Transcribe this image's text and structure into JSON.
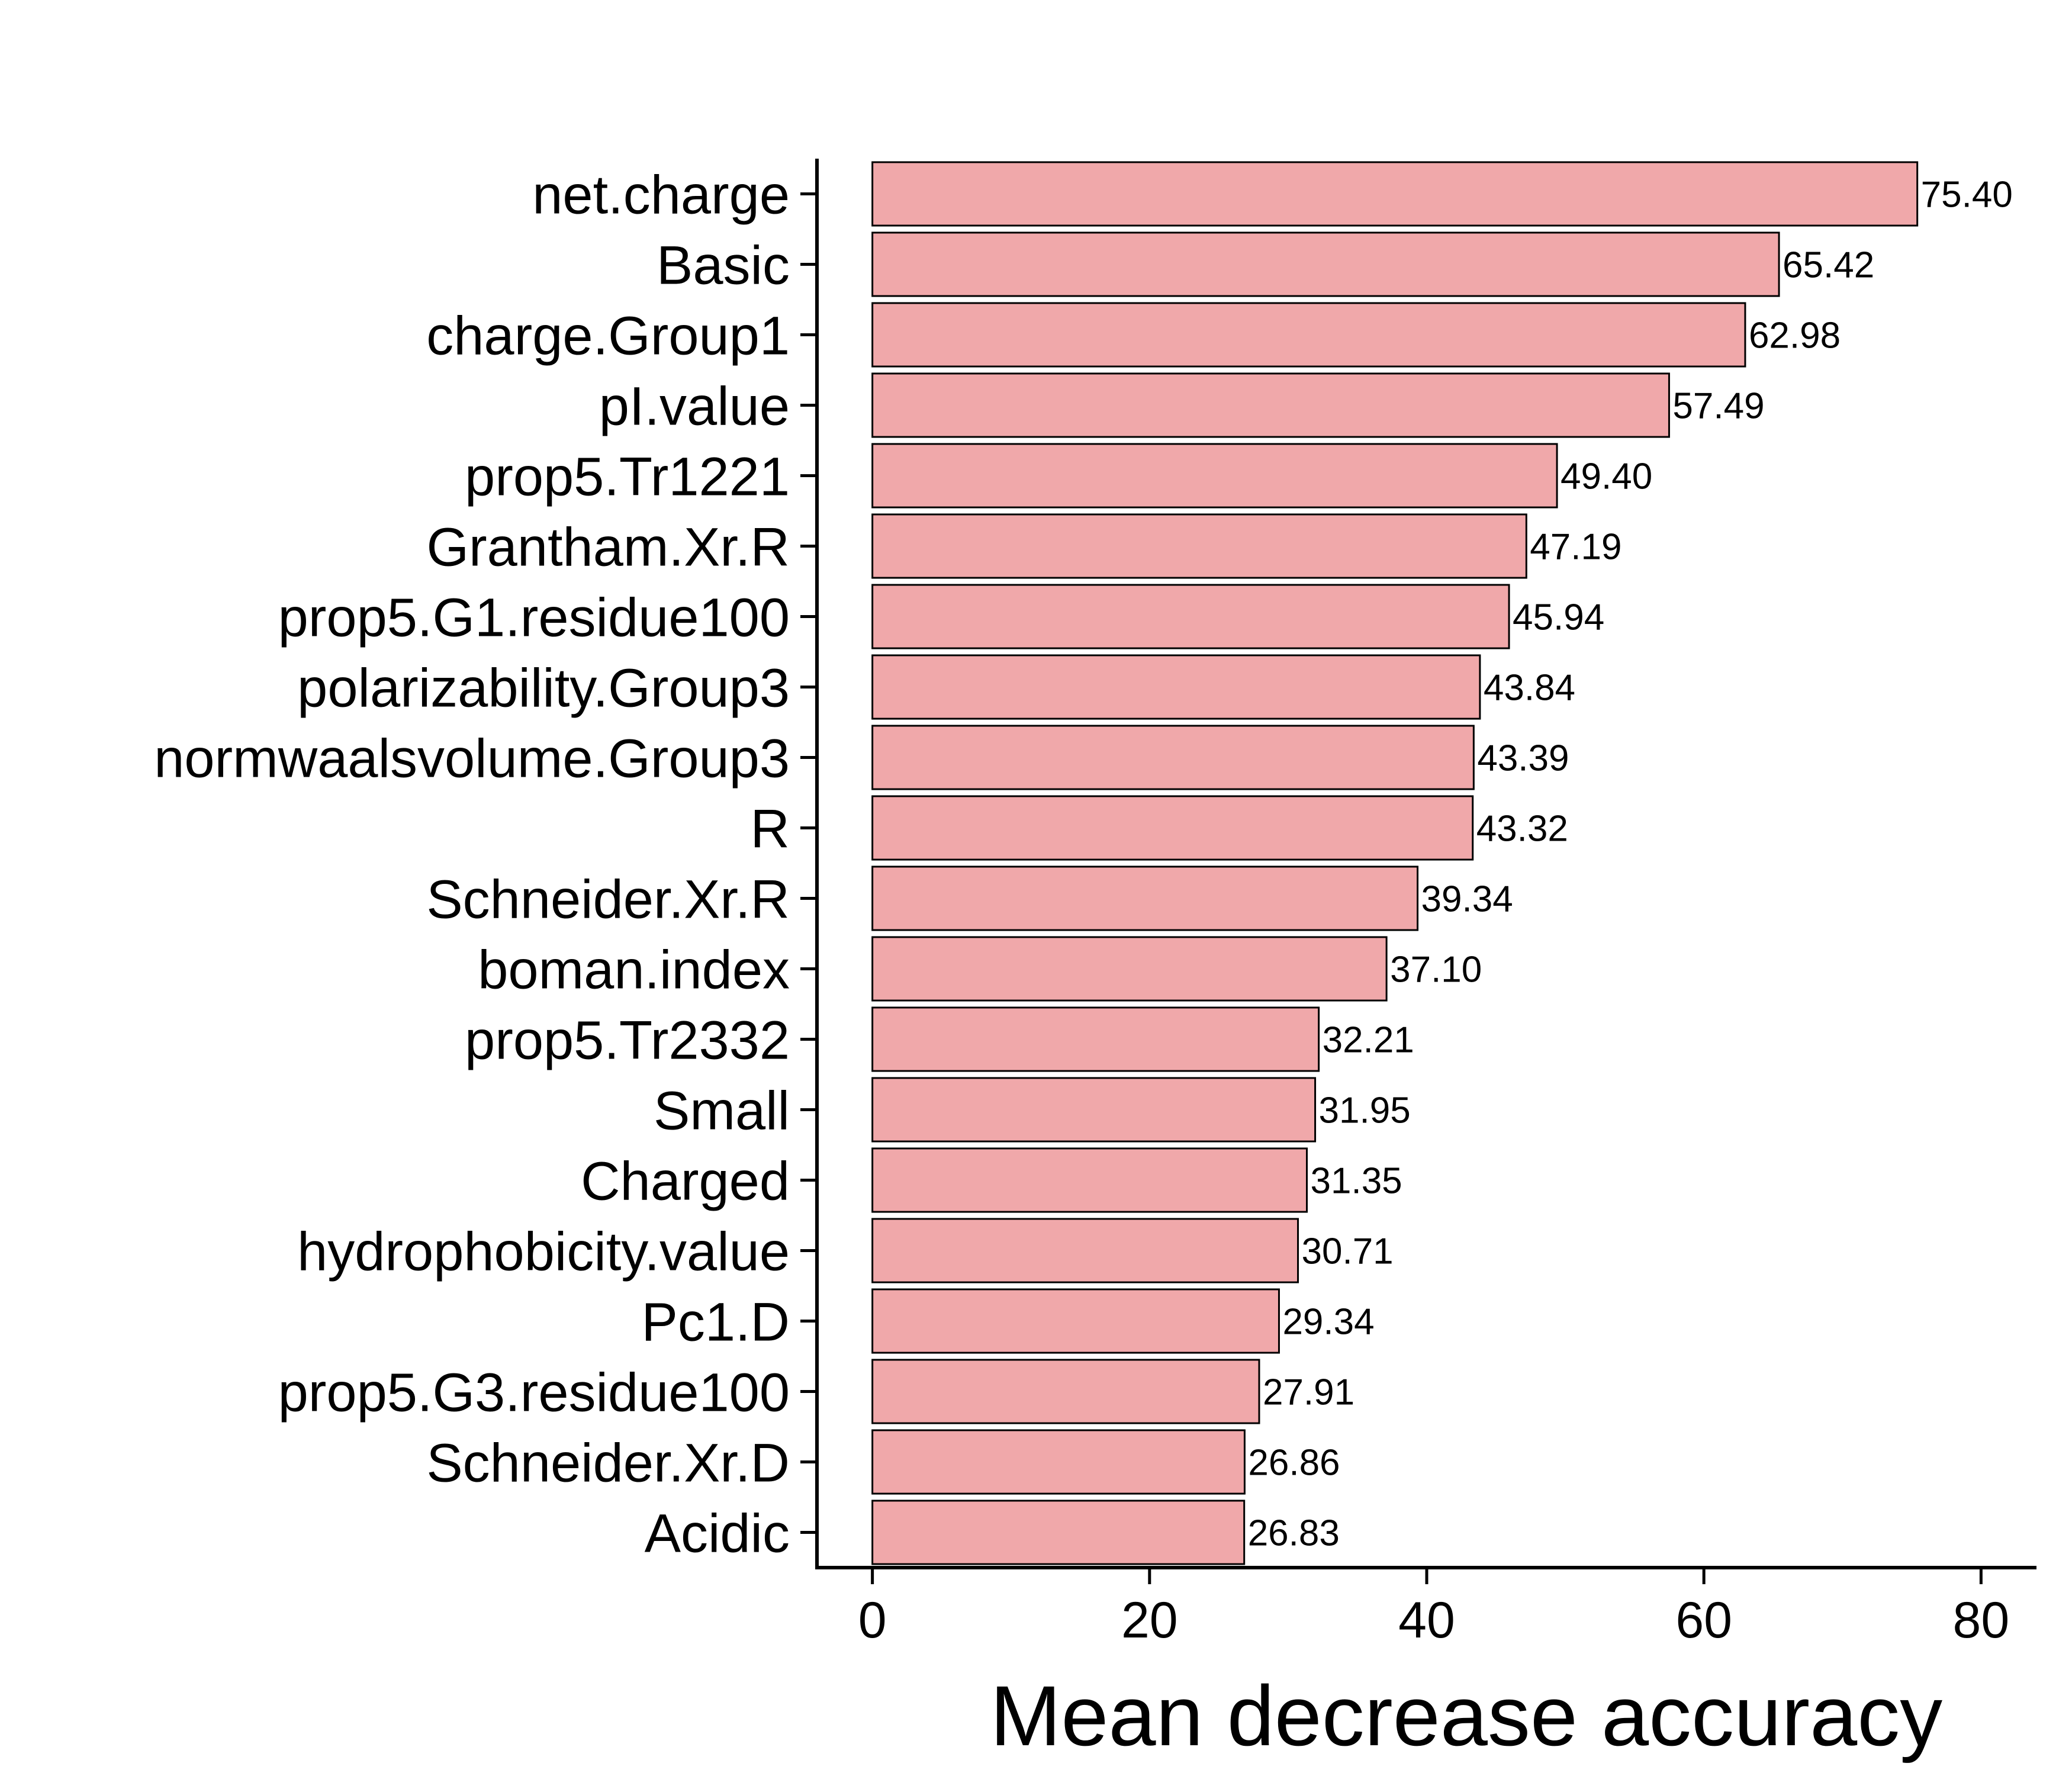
{
  "chart_data": {
    "type": "bar",
    "orientation": "horizontal",
    "categories": [
      "net.charge",
      "Basic",
      "charge.Group1",
      "pI.value",
      "prop5.Tr1221",
      "Grantham.Xr.R",
      "prop5.G1.residue100",
      "polarizability.Group3",
      "normwaalsvolume.Group3",
      "R",
      "Schneider.Xr.R",
      "boman.index",
      "prop5.Tr2332",
      "Small",
      "Charged",
      "hydrophobicity.value",
      "Pc1.D",
      "prop5.G3.residue100",
      "Schneider.Xr.D",
      "Acidic"
    ],
    "values": [
      75.4,
      65.42,
      62.98,
      57.49,
      49.4,
      47.19,
      45.94,
      43.84,
      43.39,
      43.32,
      39.34,
      37.1,
      32.21,
      31.95,
      31.35,
      30.71,
      29.34,
      27.91,
      26.86,
      26.83
    ],
    "value_labels": [
      "75.40",
      "65.42",
      "62.98",
      "57.49",
      "49.40",
      "47.19",
      "45.94",
      "43.84",
      "43.39",
      "43.32",
      "39.34",
      "37.10",
      "32.21",
      "31.95",
      "31.35",
      "30.71",
      "29.34",
      "27.91",
      "26.86",
      "26.83"
    ],
    "xlabel": "Mean decrease accuracy",
    "ylabel": "",
    "title": "",
    "xlim": [
      -4,
      84
    ],
    "x_ticks": [
      0,
      20,
      40,
      60,
      80
    ],
    "x_tick_labels": [
      "0",
      "20",
      "40",
      "60",
      "80"
    ],
    "grid": false,
    "bar_color": "#f0a8aa",
    "bar_edge_color": "#000000"
  }
}
